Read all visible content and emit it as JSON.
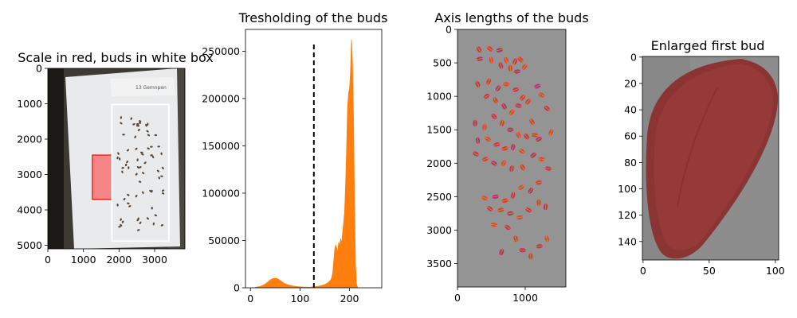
{
  "chart_data": [
    {
      "type": "image",
      "title": "Scale in red, buds in white box",
      "x_ticks": [
        0,
        1000,
        2000,
        3000
      ],
      "y_ticks": [
        0,
        1000,
        2000,
        3000,
        4000,
        5000
      ],
      "xlim": [
        0,
        3850
      ],
      "ylim": [
        5100,
        0
      ],
      "scale_box": {
        "x": [
          1250,
          1800
        ],
        "y": [
          2450,
          3700
        ],
        "color": "#ff2a2a"
      },
      "buds_box": {
        "x": [
          1800,
          3400
        ],
        "y": [
          1020,
          4880
        ],
        "color": "#ffffff"
      }
    },
    {
      "type": "bar",
      "title": "Tresholding of the buds",
      "x_ticks": [
        0,
        100,
        200
      ],
      "y_ticks": [
        0,
        50000,
        100000,
        150000,
        200000,
        250000
      ],
      "xlim": [
        -10,
        265
      ],
      "ylim": [
        0,
        273000
      ],
      "threshold": 128,
      "color": "#ff7f0e",
      "histogram": [
        [
          10,
          500
        ],
        [
          15,
          900
        ],
        [
          20,
          1500
        ],
        [
          25,
          2500
        ],
        [
          30,
          4000
        ],
        [
          35,
          6000
        ],
        [
          40,
          8200
        ],
        [
          45,
          9800
        ],
        [
          50,
          10200
        ],
        [
          55,
          9500
        ],
        [
          60,
          7800
        ],
        [
          65,
          5800
        ],
        [
          70,
          4300
        ],
        [
          75,
          3300
        ],
        [
          80,
          2600
        ],
        [
          85,
          2000
        ],
        [
          90,
          1600
        ],
        [
          95,
          1200
        ],
        [
          100,
          1000
        ],
        [
          105,
          800
        ],
        [
          110,
          700
        ],
        [
          115,
          600
        ],
        [
          120,
          550
        ],
        [
          125,
          900
        ],
        [
          130,
          1200
        ],
        [
          135,
          1400
        ],
        [
          140,
          2000
        ],
        [
          145,
          2600
        ],
        [
          150,
          3500
        ],
        [
          155,
          4800
        ],
        [
          160,
          7000
        ],
        [
          163,
          9000
        ],
        [
          166,
          15000
        ],
        [
          168,
          28000
        ],
        [
          170,
          40000
        ],
        [
          172,
          45000
        ],
        [
          174,
          42000
        ],
        [
          176,
          36000
        ],
        [
          178,
          48000
        ],
        [
          180,
          44000
        ],
        [
          182,
          52000
        ],
        [
          184,
          47000
        ],
        [
          186,
          58000
        ],
        [
          188,
          68000
        ],
        [
          190,
          80000
        ],
        [
          192,
          108000
        ],
        [
          194,
          145000
        ],
        [
          196,
          190000
        ],
        [
          198,
          205000
        ],
        [
          200,
          210000
        ],
        [
          202,
          228000
        ],
        [
          204,
          262000
        ],
        [
          206,
          235000
        ],
        [
          208,
          180000
        ],
        [
          210,
          90000
        ],
        [
          212,
          25000
        ],
        [
          214,
          4000
        ],
        [
          216,
          800
        ]
      ]
    },
    {
      "type": "image",
      "title": "Axis lengths of the buds",
      "x_ticks": [
        0,
        1000
      ],
      "y_ticks": [
        0,
        500,
        1000,
        1500,
        2000,
        2500,
        3000,
        3500
      ],
      "xlim": [
        0,
        1600
      ],
      "ylim": [
        3850,
        0
      ],
      "buds": [
        [
          320,
          300
        ],
        [
          480,
          290
        ],
        [
          620,
          310
        ],
        [
          720,
          460
        ],
        [
          850,
          480
        ],
        [
          930,
          450
        ],
        [
          330,
          440
        ],
        [
          500,
          460
        ],
        [
          640,
          540
        ],
        [
          780,
          580
        ],
        [
          880,
          630
        ],
        [
          990,
          560
        ],
        [
          300,
          820
        ],
        [
          460,
          780
        ],
        [
          600,
          880
        ],
        [
          720,
          820
        ],
        [
          860,
          900
        ],
        [
          960,
          1020
        ],
        [
          1180,
          850
        ],
        [
          1240,
          980
        ],
        [
          1320,
          1180
        ],
        [
          1100,
          1380
        ],
        [
          1200,
          1640
        ],
        [
          1380,
          1540
        ],
        [
          430,
          1000
        ],
        [
          560,
          1060
        ],
        [
          690,
          1150
        ],
        [
          800,
          1240
        ],
        [
          900,
          1140
        ],
        [
          1040,
          1080
        ],
        [
          260,
          1400
        ],
        [
          400,
          1460
        ],
        [
          540,
          1300
        ],
        [
          660,
          1400
        ],
        [
          780,
          1500
        ],
        [
          900,
          1580
        ],
        [
          1020,
          1600
        ],
        [
          1140,
          1580
        ],
        [
          300,
          1660
        ],
        [
          450,
          1640
        ],
        [
          580,
          1720
        ],
        [
          700,
          1780
        ],
        [
          820,
          1760
        ],
        [
          950,
          1820
        ],
        [
          270,
          1860
        ],
        [
          410,
          1940
        ],
        [
          540,
          2000
        ],
        [
          680,
          2000
        ],
        [
          800,
          2080
        ],
        [
          960,
          2060
        ],
        [
          1120,
          1880
        ],
        [
          1240,
          1940
        ],
        [
          1340,
          2080
        ],
        [
          1200,
          2290
        ],
        [
          1080,
          2410
        ],
        [
          940,
          2360
        ],
        [
          820,
          2480
        ],
        [
          700,
          2560
        ],
        [
          560,
          2500
        ],
        [
          400,
          2520
        ],
        [
          480,
          2680
        ],
        [
          640,
          2700
        ],
        [
          780,
          2750
        ],
        [
          920,
          2810
        ],
        [
          1050,
          2700
        ],
        [
          1200,
          2590
        ],
        [
          1300,
          2650
        ],
        [
          540,
          2920
        ],
        [
          740,
          2960
        ],
        [
          860,
          3130
        ],
        [
          960,
          3300
        ],
        [
          1320,
          3130
        ],
        [
          1210,
          3240
        ],
        [
          1080,
          3390
        ],
        [
          650,
          3330
        ]
      ]
    },
    {
      "type": "image",
      "title": "Enlarged first bud",
      "x_ticks": [
        0,
        50,
        100
      ],
      "y_ticks": [
        0,
        20,
        40,
        60,
        80,
        100,
        120,
        140
      ],
      "xlim": [
        -0.5,
        102.5
      ],
      "ylim": [
        154,
        -0.5
      ]
    }
  ]
}
